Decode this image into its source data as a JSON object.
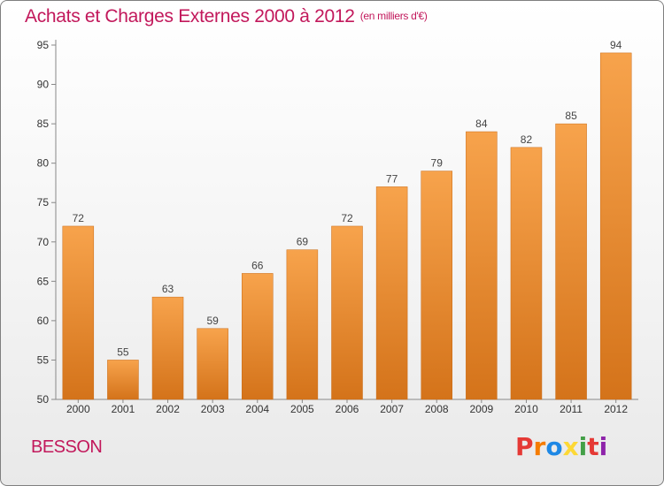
{
  "header": {
    "title": "Achats et Charges Externes 2000 à 2012",
    "unit": "(en milliers d'€)"
  },
  "footer": {
    "commune": "BESSON",
    "logo_letters": [
      "P",
      "r",
      "o",
      "x",
      "i",
      "t",
      "i"
    ],
    "logo_colors": [
      "#e53935",
      "#f57c00",
      "#1e88e5",
      "#fdd835",
      "#43a047",
      "#e53935",
      "#8e24aa"
    ]
  },
  "colors": {
    "bar_top": "#f7a34c",
    "bar_bottom": "#d4731a",
    "title": "#c2185b"
  },
  "chart_data": {
    "type": "bar",
    "title": "Achats et Charges Externes 2000 à 2012",
    "categories": [
      "2000",
      "2001",
      "2002",
      "2003",
      "2004",
      "2005",
      "2006",
      "2007",
      "2008",
      "2009",
      "2010",
      "2011",
      "2012"
    ],
    "values": [
      72,
      55,
      63,
      59,
      66,
      69,
      72,
      77,
      79,
      84,
      82,
      85,
      94
    ],
    "ylim": [
      50,
      95
    ],
    "yticks": [
      50,
      55,
      60,
      65,
      70,
      75,
      80,
      85,
      90,
      95
    ],
    "grid": false,
    "legend": "none"
  }
}
